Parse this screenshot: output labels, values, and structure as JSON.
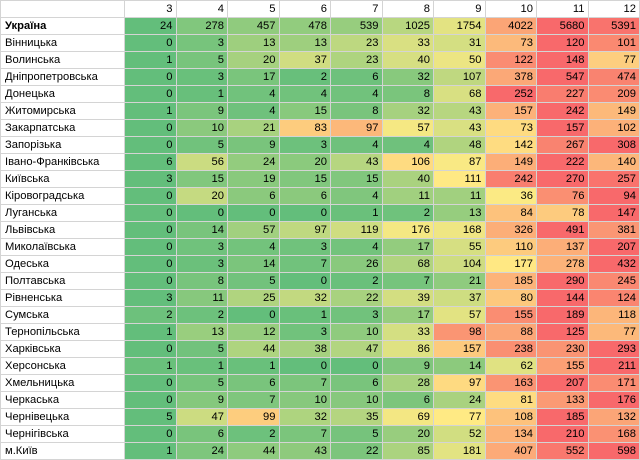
{
  "columns": [
    "3",
    "4",
    "5",
    "6",
    "7",
    "8",
    "9",
    "10",
    "11",
    "12"
  ],
  "rows": [
    {
      "name": "Україна",
      "values": [
        24,
        278,
        457,
        478,
        539,
        1025,
        1754,
        4022,
        5680,
        5391
      ]
    },
    {
      "name": "Вінницька",
      "values": [
        0,
        3,
        13,
        13,
        23,
        33,
        31,
        73,
        120,
        101
      ]
    },
    {
      "name": "Волинська",
      "values": [
        1,
        5,
        20,
        37,
        23,
        40,
        50,
        122,
        148,
        77
      ]
    },
    {
      "name": "Дніпропетровська",
      "values": [
        0,
        3,
        17,
        2,
        6,
        32,
        107,
        378,
        547,
        474
      ]
    },
    {
      "name": "Донецька",
      "values": [
        0,
        1,
        4,
        4,
        4,
        8,
        68,
        252,
        227,
        209
      ]
    },
    {
      "name": "Житомирська",
      "values": [
        1,
        9,
        4,
        15,
        8,
        32,
        43,
        157,
        242,
        149
      ]
    },
    {
      "name": "Закарпатська",
      "values": [
        0,
        10,
        21,
        83,
        97,
        57,
        43,
        73,
        157,
        102
      ]
    },
    {
      "name": "Запорізька",
      "values": [
        0,
        5,
        9,
        3,
        4,
        4,
        48,
        142,
        267,
        308
      ]
    },
    {
      "name": "Івано-Франківська",
      "values": [
        6,
        56,
        24,
        20,
        43,
        106,
        87,
        149,
        222,
        140
      ]
    },
    {
      "name": "Київська",
      "values": [
        3,
        15,
        19,
        15,
        15,
        40,
        111,
        242,
        270,
        257
      ]
    },
    {
      "name": "Кіровоградська",
      "values": [
        0,
        20,
        6,
        6,
        4,
        11,
        11,
        36,
        76,
        94
      ]
    },
    {
      "name": "Луганська",
      "values": [
        0,
        0,
        0,
        0,
        1,
        2,
        13,
        84,
        78,
        147
      ]
    },
    {
      "name": "Львівська",
      "values": [
        0,
        14,
        57,
        97,
        119,
        176,
        168,
        326,
        491,
        381
      ]
    },
    {
      "name": "Миколаївська",
      "values": [
        0,
        3,
        4,
        3,
        4,
        17,
        55,
        110,
        137,
        207
      ]
    },
    {
      "name": "Одеська",
      "values": [
        0,
        3,
        14,
        7,
        26,
        68,
        104,
        177,
        278,
        432
      ]
    },
    {
      "name": "Полтавська",
      "values": [
        0,
        8,
        5,
        0,
        2,
        7,
        21,
        185,
        290,
        245
      ]
    },
    {
      "name": "Рівненська",
      "values": [
        3,
        11,
        25,
        32,
        22,
        39,
        37,
        80,
        144,
        124
      ]
    },
    {
      "name": "Сумська",
      "values": [
        2,
        2,
        0,
        1,
        3,
        17,
        57,
        155,
        189,
        118
      ]
    },
    {
      "name": "Тернопільська",
      "values": [
        1,
        13,
        12,
        3,
        10,
        33,
        98,
        88,
        125,
        77
      ]
    },
    {
      "name": "Харківська",
      "values": [
        0,
        5,
        44,
        38,
        47,
        86,
        157,
        238,
        230,
        293
      ]
    },
    {
      "name": "Херсонська",
      "values": [
        1,
        1,
        1,
        0,
        0,
        9,
        14,
        62,
        155,
        211
      ]
    },
    {
      "name": "Хмельницька",
      "values": [
        0,
        5,
        6,
        7,
        6,
        28,
        97,
        163,
        207,
        171
      ]
    },
    {
      "name": "Черкаська",
      "values": [
        0,
        9,
        7,
        10,
        10,
        6,
        24,
        81,
        133,
        176
      ]
    },
    {
      "name": "Чернівецька",
      "values": [
        5,
        47,
        99,
        32,
        35,
        69,
        77,
        108,
        185,
        132
      ]
    },
    {
      "name": "Чернігівська",
      "values": [
        0,
        6,
        2,
        7,
        5,
        20,
        52,
        134,
        210,
        168
      ]
    },
    {
      "name": "м.Київ",
      "values": [
        1,
        24,
        44,
        43,
        22,
        85,
        181,
        407,
        552,
        598
      ]
    }
  ]
}
